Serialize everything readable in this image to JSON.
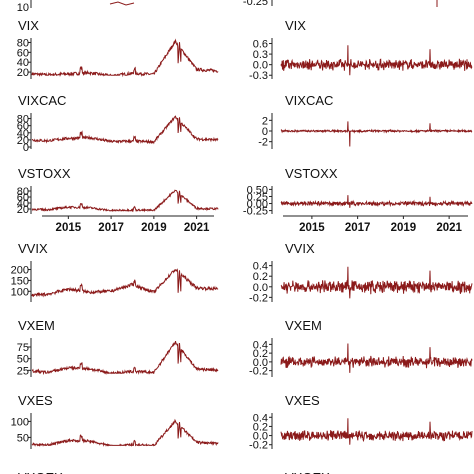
{
  "colors": {
    "series": "#8b1a1a",
    "axis": "#222222",
    "text": "#111111"
  },
  "chart_data": [
    {
      "type": "line",
      "title": "",
      "ticks": [
        "10"
      ],
      "clip": "top-partial",
      "column": "level"
    },
    {
      "type": "line",
      "title": "",
      "ticks": [
        "-0.25"
      ],
      "clip": "top-partial",
      "column": "change"
    },
    {
      "type": "line",
      "title": "VIX",
      "column": "level",
      "ylim": [
        10,
        85
      ],
      "ticks": [
        "80",
        "60",
        "40",
        "20"
      ],
      "tick_values": [
        80,
        60,
        40,
        20
      ],
      "x": [
        "2013",
        "2014",
        "2015",
        "2016",
        "2017",
        "2018",
        "2019",
        "2020",
        "2021",
        "2022"
      ],
      "values": [
        17,
        14,
        16,
        18,
        12,
        17,
        15,
        82,
        25,
        22
      ]
    },
    {
      "type": "line",
      "title": "VIX",
      "column": "change",
      "ylim": [
        -0.35,
        0.7
      ],
      "ticks": [
        "0.6",
        "0.3",
        "0.0",
        "-0.3"
      ],
      "tick_values": [
        0.6,
        0.3,
        0.0,
        -0.3
      ],
      "amplitude": 0.12,
      "spikes": [
        0.55,
        -0.3
      ]
    },
    {
      "type": "line",
      "title": "VIXCAC",
      "column": "level",
      "ylim": [
        0,
        90
      ],
      "ticks": [
        "80",
        "60",
        "40",
        "20",
        "0"
      ],
      "tick_values": [
        80,
        60,
        40,
        20,
        0
      ],
      "x": [
        "2013",
        "2014",
        "2015",
        "2016",
        "2017",
        "2018",
        "2019",
        "2020",
        "2021",
        "2022"
      ],
      "values": [
        20,
        17,
        24,
        26,
        15,
        16,
        14,
        85,
        22,
        20
      ]
    },
    {
      "type": "line",
      "title": "VIXCAC",
      "column": "change",
      "ylim": [
        -3,
        3
      ],
      "ticks": [
        "2",
        "0",
        "-2"
      ],
      "tick_values": [
        2,
        0,
        -2
      ],
      "amplitude": 0.15,
      "spikes": [
        1.8,
        -2.9
      ]
    },
    {
      "type": "line",
      "title": "VSTOXX",
      "column": "level",
      "ylim": [
        10,
        90
      ],
      "ticks": [
        "80",
        "60",
        "40",
        "20"
      ],
      "tick_values": [
        80,
        60,
        40,
        20
      ],
      "x": [
        "2013",
        "2014",
        "2015",
        "2016",
        "2017",
        "2018",
        "2019",
        "2020",
        "2021",
        "2022"
      ],
      "values": [
        20,
        17,
        26,
        24,
        14,
        16,
        15,
        82,
        22,
        20
      ],
      "xticks": [
        "2015",
        "2017",
        "2019",
        "2021"
      ]
    },
    {
      "type": "line",
      "title": "VSTOXX",
      "column": "change",
      "ylim": [
        -0.3,
        0.55
      ],
      "ticks": [
        "0.50",
        "0.25",
        "0.00",
        "-0.25"
      ],
      "tick_values": [
        0.5,
        0.25,
        0,
        -0.25
      ],
      "amplitude": 0.06,
      "spikes": [
        0.3,
        -0.15
      ],
      "xticks": [
        "2015",
        "2017",
        "2019",
        "2021"
      ]
    },
    {
      "type": "line",
      "title": "VVIX",
      "column": "level",
      "ylim": [
        60,
        230
      ],
      "ticks": [
        "200",
        "150",
        "100"
      ],
      "tick_values": [
        200,
        150,
        100
      ],
      "x": [
        "2013",
        "2014",
        "2015",
        "2016",
        "2017",
        "2018",
        "2019",
        "2020",
        "2021",
        "2022"
      ],
      "values": [
        80,
        85,
        110,
        95,
        100,
        130,
        95,
        200,
        115,
        110
      ]
    },
    {
      "type": "line",
      "title": "VVIX",
      "column": "change",
      "ylim": [
        -0.25,
        0.45
      ],
      "ticks": [
        "0.4",
        "0.2",
        "0.0",
        "-0.2"
      ],
      "tick_values": [
        0.4,
        0.2,
        0,
        -0.2
      ],
      "amplitude": 0.1,
      "spikes": [
        0.38,
        -0.22
      ]
    },
    {
      "type": "line",
      "title": "VXEM",
      "column": "level",
      "ylim": [
        15,
        90
      ],
      "ticks": [
        "75",
        "50",
        "25"
      ],
      "tick_values": [
        75,
        50,
        25
      ],
      "x": [
        "2013",
        "2014",
        "2015",
        "2016",
        "2017",
        "2018",
        "2019",
        "2020",
        "2021",
        "2022"
      ],
      "values": [
        25,
        20,
        30,
        28,
        18,
        22,
        20,
        85,
        28,
        25
      ]
    },
    {
      "type": "line",
      "title": "VXEM",
      "column": "change",
      "ylim": [
        -0.3,
        0.5
      ],
      "ticks": [
        "0.4",
        "0.2",
        "0.0",
        "-0.2"
      ],
      "tick_values": [
        0.4,
        0.2,
        0,
        -0.2
      ],
      "amplitude": 0.1,
      "spikes": [
        0.42,
        -0.25
      ]
    },
    {
      "type": "line",
      "title": "VXES",
      "column": "level",
      "ylim": [
        20,
        120
      ],
      "ticks": [
        "100",
        "50"
      ],
      "tick_values": [
        100,
        50
      ],
      "x": [
        "2013",
        "2014",
        "2015",
        "2016",
        "2017",
        "2018",
        "2019",
        "2020",
        "2021",
        "2022"
      ],
      "values": [
        30,
        25,
        40,
        38,
        22,
        26,
        24,
        100,
        34,
        30
      ]
    },
    {
      "type": "line",
      "title": "VXES",
      "column": "change",
      "ylim": [
        -0.25,
        0.45
      ],
      "ticks": [
        "0.4",
        "0.2",
        "0.0",
        "-0.2"
      ],
      "tick_values": [
        0.4,
        0.2,
        0,
        -0.2
      ],
      "amplitude": 0.09,
      "spikes": [
        0.38,
        -0.2
      ]
    },
    {
      "type": "line",
      "title": "VXOEX",
      "column": "level",
      "clip": "bottom-partial"
    },
    {
      "type": "line",
      "title": "VXOEX",
      "column": "change",
      "clip": "bottom-partial"
    }
  ]
}
